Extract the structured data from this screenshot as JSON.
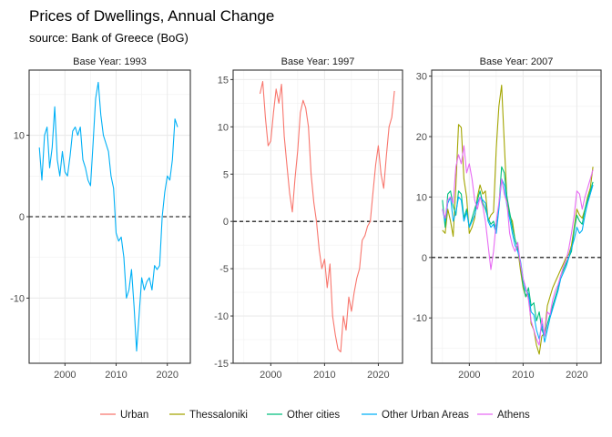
{
  "title": "Prices of Dwellings, Annual Change",
  "subtitle": "source: Bank of Greece (BoG)",
  "colors": {
    "Urban": "#F8766D",
    "Thessaloniki": "#A3A500",
    "Other cities": "#00BF7D",
    "Other Urban Areas": "#00B0F6",
    "Athens": "#E76BF3"
  },
  "legend": [
    "Urban",
    "Thessaloniki",
    "Other cities",
    "Other Urban Areas",
    "Athens"
  ],
  "chart_data": [
    {
      "type": "line",
      "title": "Base Year: 1993",
      "xlim": [
        1993.0,
        2024.5
      ],
      "ylim": [
        -18,
        18
      ],
      "xticks": [
        2000,
        2010,
        2020
      ],
      "xtick_labels": [
        "2000",
        "2010",
        "2020"
      ],
      "yticks": [
        -10,
        0,
        10
      ],
      "ytick_labels": [
        "-10",
        "0",
        "10"
      ],
      "reference_line": 0,
      "series": [
        {
          "name": "Other Urban Areas",
          "x": [
            1995,
            1995.5,
            1996,
            1996.5,
            1997,
            1997.5,
            1998,
            1998.5,
            1999,
            1999.5,
            2000,
            2000.5,
            2001,
            2001.5,
            2002,
            2002.5,
            2003,
            2003.5,
            2004,
            2004.5,
            2005,
            2005.5,
            2006,
            2006.5,
            2007,
            2007.5,
            2008,
            2008.5,
            2009,
            2009.5,
            2010,
            2010.5,
            2011,
            2011.5,
            2012,
            2012.5,
            2013,
            2013.5,
            2014,
            2014.5,
            2015,
            2015.5,
            2016,
            2016.5,
            2017,
            2017.5,
            2018,
            2018.5,
            2019,
            2019.5,
            2020,
            2020.5,
            2021,
            2021.5,
            2022
          ],
          "y": [
            8.5,
            4.5,
            10.0,
            11.0,
            6.0,
            8.5,
            13.5,
            7.0,
            5.0,
            8.0,
            5.5,
            5.0,
            7.5,
            10.5,
            11.0,
            10.0,
            11.0,
            7.0,
            6.0,
            4.5,
            3.8,
            9.0,
            14.5,
            16.5,
            12.5,
            10.0,
            9.0,
            8.0,
            5.0,
            3.5,
            -2.0,
            -3.0,
            -2.5,
            -5.0,
            -10.0,
            -9.0,
            -6.5,
            -11.0,
            -16.5,
            -12.0,
            -7.5,
            -9.0,
            -8.0,
            -7.5,
            -9.0,
            -6.0,
            -6.5,
            -6.0,
            0.0,
            3.0,
            5.0,
            4.5,
            7.0,
            12.0,
            11.0
          ]
        }
      ]
    },
    {
      "type": "line",
      "title": "Base Year: 1997",
      "xlim": [
        1993.0,
        2024.5
      ],
      "ylim": [
        -15,
        16
      ],
      "xticks": [
        2000,
        2010,
        2020
      ],
      "xtick_labels": [
        "2000",
        "2010",
        "2020"
      ],
      "yticks": [
        -15,
        -10,
        -5,
        0,
        5,
        10,
        15
      ],
      "ytick_labels": [
        "-15",
        "-10",
        "-5",
        "0",
        "5",
        "10",
        "15"
      ],
      "reference_line": 0,
      "series": [
        {
          "name": "Urban",
          "x": [
            1998,
            1998.5,
            1999,
            1999.5,
            2000,
            2000.5,
            2001,
            2001.5,
            2002,
            2002.5,
            2003,
            2003.5,
            2004,
            2004.5,
            2005,
            2005.5,
            2006,
            2006.5,
            2007,
            2007.5,
            2008,
            2008.5,
            2009,
            2009.5,
            2010,
            2010.5,
            2011,
            2011.5,
            2012,
            2012.5,
            2013,
            2013.5,
            2014,
            2014.5,
            2015,
            2015.5,
            2016,
            2016.5,
            2017,
            2017.5,
            2018,
            2018.5,
            2019,
            2019.5,
            2020,
            2020.5,
            2021,
            2021.5,
            2022,
            2022.5,
            2023
          ],
          "y": [
            13.5,
            14.8,
            11.0,
            8.0,
            8.5,
            11.5,
            14.0,
            12.5,
            14.5,
            9.0,
            6.0,
            3.0,
            1.0,
            4.5,
            7.5,
            11.5,
            12.8,
            12.0,
            10.0,
            5.0,
            2.0,
            0.0,
            -3.0,
            -5.0,
            -4.0,
            -7.0,
            -4.5,
            -10.0,
            -12.0,
            -13.5,
            -13.8,
            -10.0,
            -11.5,
            -8.0,
            -9.5,
            -7.5,
            -6.0,
            -5.0,
            -2.0,
            -1.5,
            -0.5,
            0.0,
            3.0,
            6.0,
            8.0,
            5.0,
            3.5,
            7.0,
            10.0,
            11.0,
            13.8
          ]
        }
      ]
    },
    {
      "type": "line",
      "title": "Base Year: 2007",
      "xlim": [
        1993.0,
        2024.5
      ],
      "ylim": [
        -17.5,
        31
      ],
      "xticks": [
        2000,
        2010,
        2020
      ],
      "xtick_labels": [
        "2000",
        "2010",
        "2020"
      ],
      "yticks": [
        -10,
        0,
        10,
        20,
        30
      ],
      "ytick_labels": [
        "-10",
        "0",
        "10",
        "20",
        "30"
      ],
      "reference_line": 0,
      "series": [
        {
          "name": "Thessaloniki",
          "x": [
            1995,
            1995.5,
            1996,
            1996.5,
            1997,
            1997.5,
            1998,
            1998.5,
            1999,
            1999.5,
            2000,
            2000.5,
            2001,
            2001.5,
            2002,
            2002.5,
            2003,
            2003.5,
            2004,
            2004.5,
            2005,
            2005.5,
            2006,
            2006.5,
            2007,
            2007.5,
            2008,
            2008.5,
            2009,
            2009.5,
            2010,
            2010.5,
            2011,
            2011.5,
            2012,
            2012.5,
            2013,
            2013.5,
            2014,
            2014.5,
            2015,
            2015.5,
            2016,
            2016.5,
            2017,
            2017.5,
            2018,
            2018.5,
            2019,
            2019.5,
            2020,
            2020.5,
            2021,
            2021.5,
            2022,
            2022.5,
            2023
          ],
          "y": [
            4.5,
            4.0,
            8.0,
            6.0,
            3.5,
            12.0,
            22.0,
            21.5,
            13.0,
            10.0,
            4.0,
            5.0,
            6.5,
            10.0,
            12.0,
            10.5,
            11.0,
            6.0,
            7.0,
            7.5,
            18.0,
            25.0,
            28.5,
            19.0,
            9.5,
            7.0,
            6.0,
            3.0,
            1.5,
            -2.0,
            -5.0,
            -6.5,
            -6.0,
            -11.0,
            -12.0,
            -14.5,
            -16.0,
            -13.0,
            -12.5,
            -8.0,
            -6.5,
            -5.0,
            -4.0,
            -3.0,
            -2.0,
            -1.0,
            0.0,
            0.5,
            2.0,
            5.0,
            8.0,
            7.0,
            6.5,
            8.0,
            10.0,
            11.5,
            15.0
          ]
        },
        {
          "name": "Other cities",
          "x": [
            1995,
            1995.5,
            1996,
            1996.5,
            1997,
            1997.5,
            1998,
            1998.5,
            1999,
            1999.5,
            2000,
            2000.5,
            2001,
            2001.5,
            2002,
            2002.5,
            2003,
            2003.5,
            2004,
            2004.5,
            2005,
            2005.5,
            2006,
            2006.5,
            2007,
            2007.5,
            2008,
            2008.5,
            2009,
            2009.5,
            2010,
            2010.5,
            2011,
            2011.5,
            2012,
            2012.5,
            2013,
            2013.5,
            2014,
            2014.5,
            2015,
            2015.5,
            2016,
            2016.5,
            2017,
            2017.5,
            2018,
            2018.5,
            2019,
            2019.5,
            2020,
            2020.5,
            2021,
            2021.5,
            2022,
            2022.5,
            2023
          ],
          "y": [
            9.5,
            5.0,
            10.5,
            11.0,
            8.5,
            7.0,
            11.0,
            10.5,
            6.5,
            8.0,
            5.0,
            6.5,
            8.0,
            9.5,
            11.0,
            9.0,
            8.0,
            6.5,
            5.5,
            6.0,
            4.5,
            8.5,
            15.0,
            14.0,
            10.0,
            7.5,
            5.0,
            3.0,
            1.5,
            -1.0,
            -4.5,
            -6.5,
            -5.0,
            -8.0,
            -7.5,
            -10.5,
            -9.0,
            -12.0,
            -13.0,
            -11.0,
            -9.5,
            -8.0,
            -6.5,
            -5.0,
            -3.0,
            -2.0,
            -1.0,
            0.0,
            1.0,
            4.5,
            7.0,
            6.0,
            5.5,
            8.0,
            9.5,
            11.0,
            12.5
          ]
        },
        {
          "name": "Other Urban Areas",
          "x": [
            1995,
            1995.5,
            1996,
            1996.5,
            1997,
            1997.5,
            1998,
            1998.5,
            1999,
            1999.5,
            2000,
            2000.5,
            2001,
            2001.5,
            2002,
            2002.5,
            2003,
            2003.5,
            2004,
            2004.5,
            2005,
            2005.5,
            2006,
            2006.5,
            2007,
            2007.5,
            2008,
            2008.5,
            2009,
            2009.5,
            2010,
            2010.5,
            2011,
            2011.5,
            2012,
            2012.5,
            2013,
            2013.5,
            2014,
            2014.5,
            2015,
            2015.5,
            2016,
            2016.5,
            2017,
            2017.5,
            2018,
            2018.5,
            2019,
            2019.5,
            2020,
            2020.5,
            2021,
            2021.5,
            2022,
            2022.5,
            2023
          ],
          "y": [
            8.0,
            6.0,
            9.0,
            10.0,
            6.0,
            7.5,
            10.0,
            9.5,
            6.0,
            7.5,
            5.0,
            6.0,
            7.0,
            9.0,
            10.0,
            9.5,
            9.0,
            6.0,
            5.0,
            5.5,
            4.0,
            8.0,
            13.0,
            12.0,
            8.5,
            6.5,
            4.0,
            2.0,
            1.0,
            -0.5,
            -3.5,
            -5.5,
            -6.0,
            -9.0,
            -9.5,
            -12.0,
            -13.5,
            -11.0,
            -14.0,
            -12.0,
            -10.0,
            -8.5,
            -7.0,
            -5.5,
            -3.5,
            -2.5,
            -1.5,
            0.0,
            1.5,
            3.0,
            5.0,
            4.0,
            4.5,
            7.0,
            9.0,
            10.5,
            12.0
          ]
        },
        {
          "name": "Athens",
          "x": [
            1995,
            1995.5,
            1996,
            1996.5,
            1997,
            1997.5,
            1998,
            1998.5,
            1999,
            1999.5,
            2000,
            2000.5,
            2001,
            2001.5,
            2002,
            2002.5,
            2003,
            2003.5,
            2004,
            2004.5,
            2005,
            2005.5,
            2006,
            2006.5,
            2007,
            2007.5,
            2008,
            2008.5,
            2009,
            2009.5,
            2010,
            2010.5,
            2011,
            2011.5,
            2012,
            2012.5,
            2013,
            2013.5,
            2014,
            2014.5,
            2015,
            2015.5,
            2016,
            2016.5,
            2017,
            2017.5,
            2018,
            2018.5,
            2019,
            2019.5,
            2020,
            2020.5,
            2021,
            2021.5,
            2022,
            2022.5,
            2023
          ],
          "y": [
            8.0,
            6.5,
            9.5,
            10.0,
            9.0,
            15.0,
            17.0,
            15.5,
            18.5,
            14.0,
            15.5,
            13.0,
            9.5,
            8.0,
            10.0,
            8.5,
            6.0,
            2.0,
            -2.0,
            1.0,
            6.0,
            9.0,
            13.0,
            10.5,
            9.0,
            4.0,
            2.0,
            1.0,
            2.5,
            -1.0,
            -3.5,
            -5.0,
            -7.0,
            -10.5,
            -12.0,
            -13.5,
            -14.5,
            -10.0,
            -13.0,
            -9.0,
            -9.5,
            -7.0,
            -5.5,
            -4.5,
            -3.0,
            -1.5,
            -0.5,
            1.5,
            4.0,
            7.0,
            11.0,
            10.5,
            8.0,
            10.0,
            11.5,
            13.0,
            14.5
          ]
        }
      ]
    }
  ]
}
